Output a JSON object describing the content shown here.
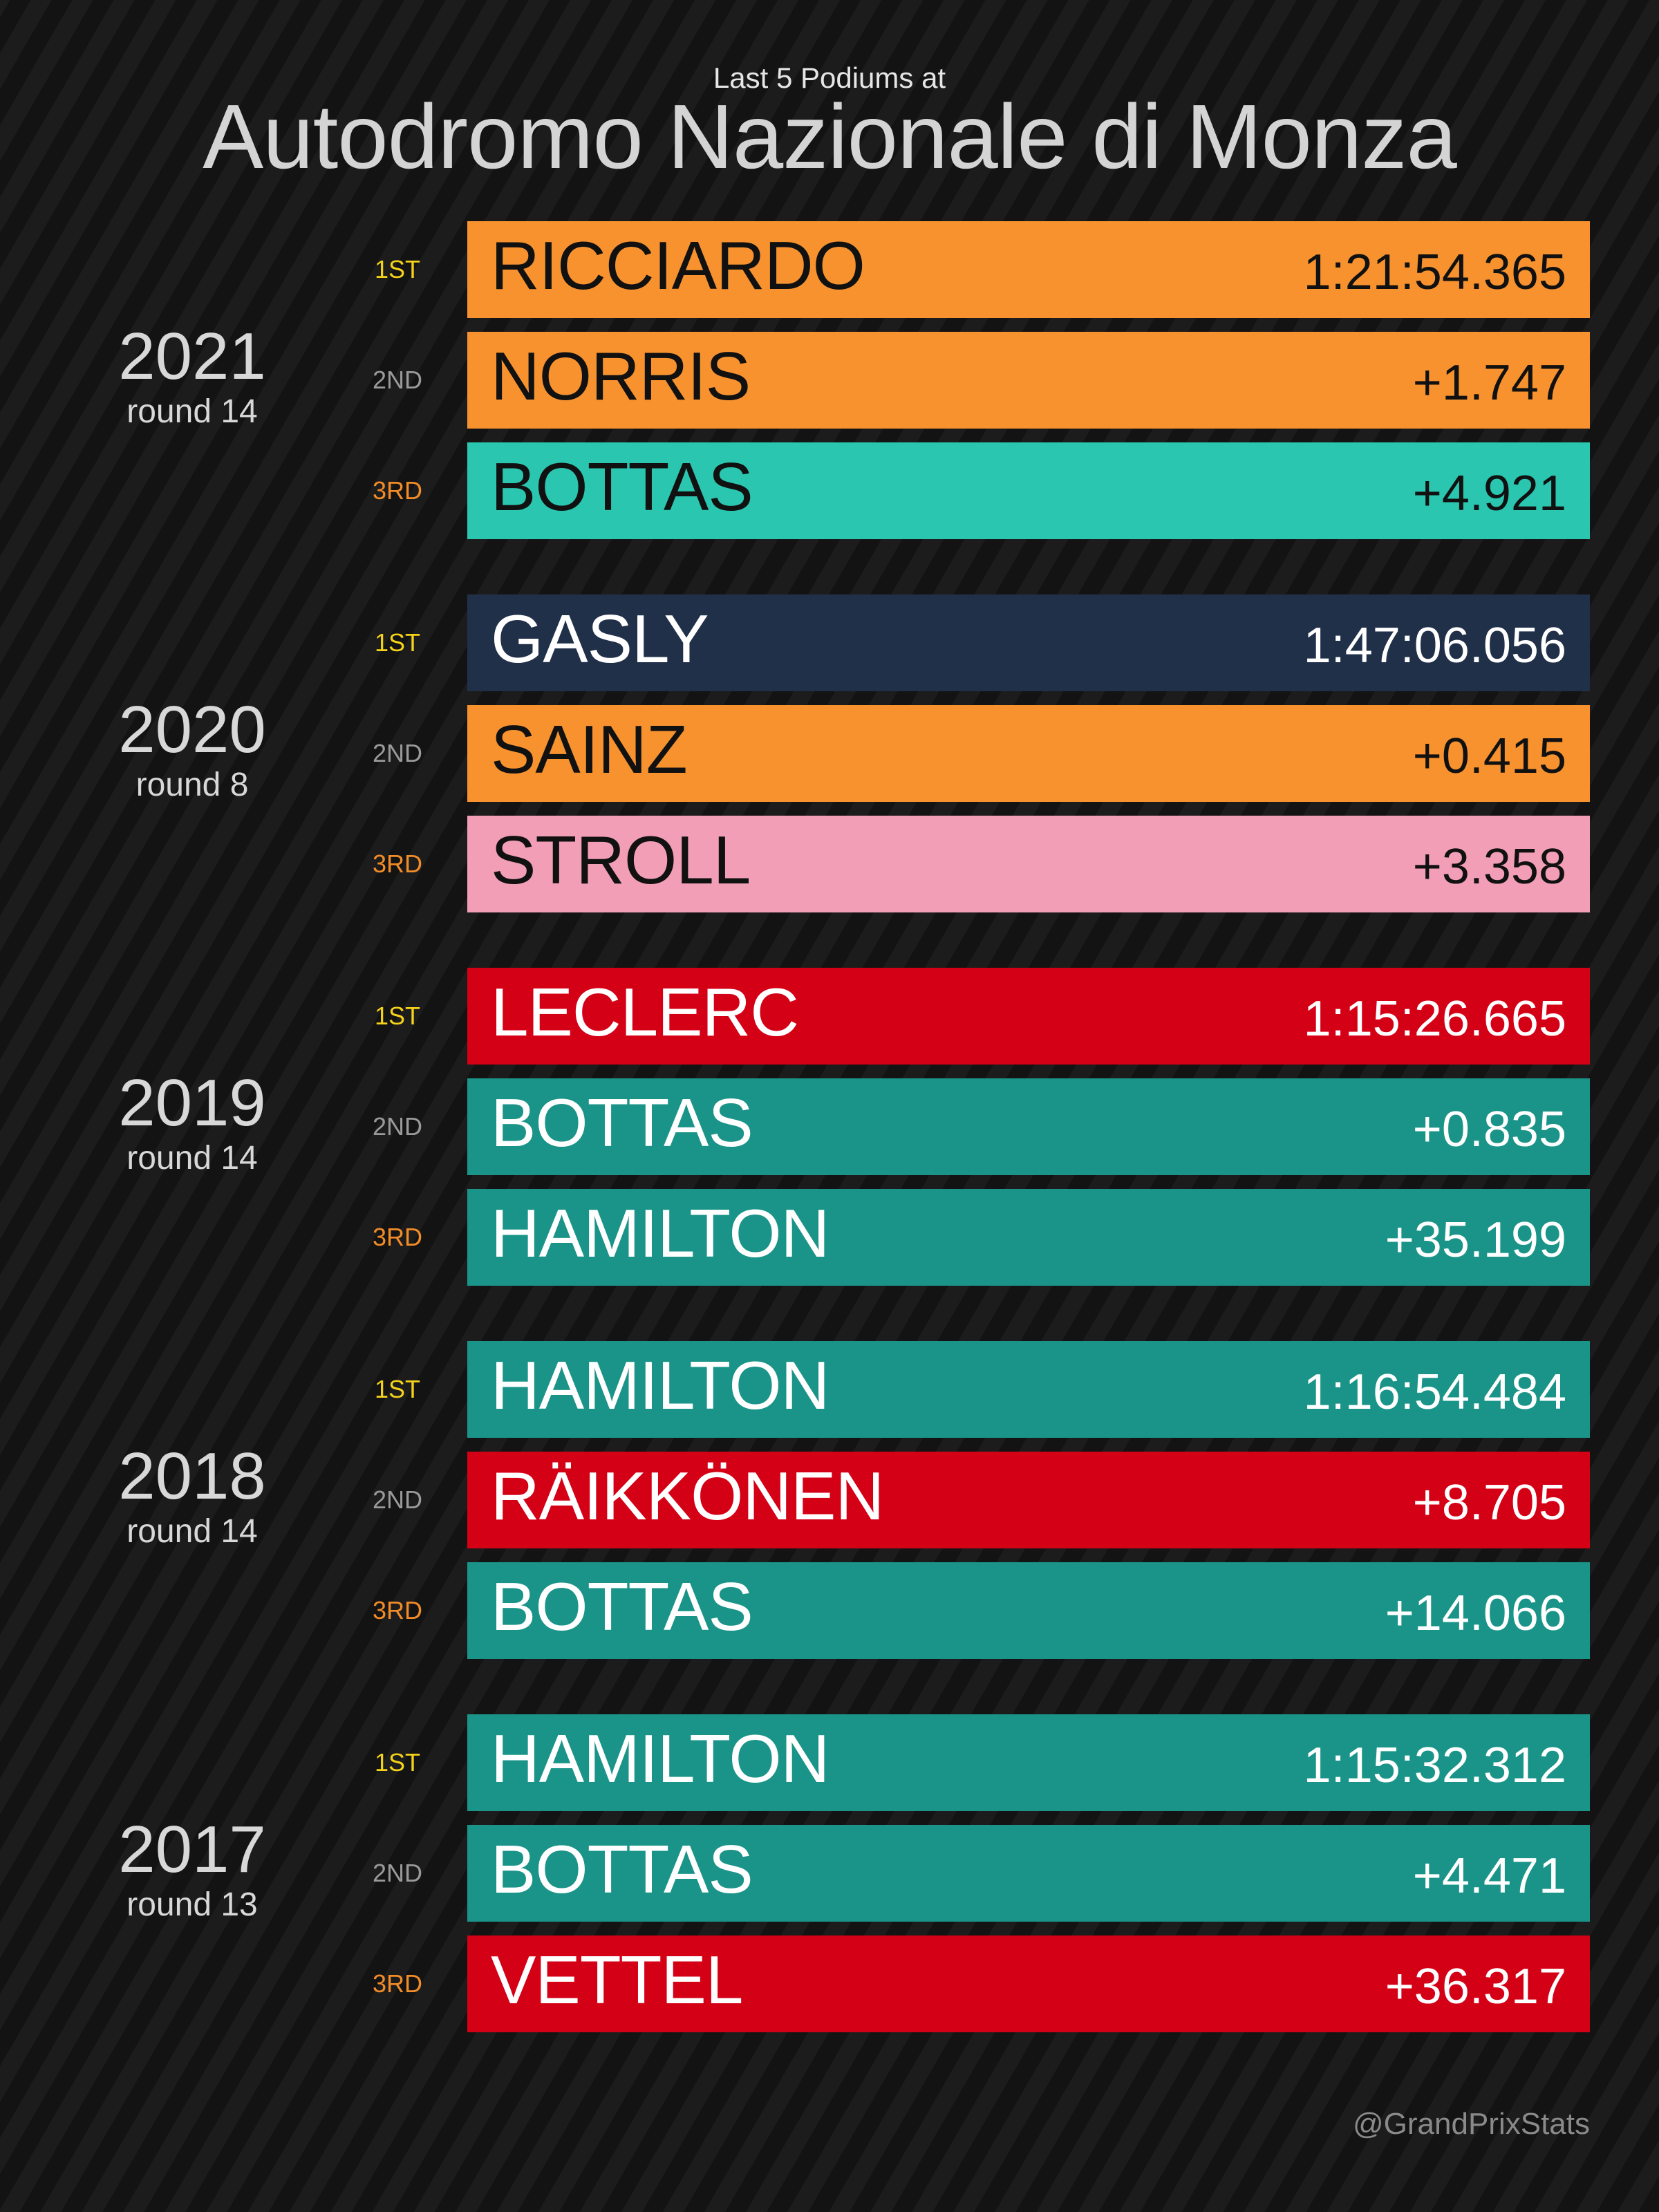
{
  "header": {
    "subtitle": "Last 5 Podiums at",
    "title": "Autodromo Nazionale di Monza"
  },
  "position_labels": {
    "p1": "1ST",
    "p2": "2ND",
    "p3": "3RD"
  },
  "races": [
    {
      "year": "2021",
      "round": "round 14",
      "podium": [
        {
          "driver": "RICCIARDO",
          "time": "1:21:54.365",
          "color": "#f7922f",
          "text_color": "#111111"
        },
        {
          "driver": "NORRIS",
          "time": "+1.747",
          "color": "#f7922f",
          "text_color": "#111111"
        },
        {
          "driver": "BOTTAS",
          "time": "+4.921",
          "color": "#2ac6b0",
          "text_color": "#111111"
        }
      ]
    },
    {
      "year": "2020",
      "round": "round 8",
      "podium": [
        {
          "driver": "GASLY",
          "time": "1:47:06.056",
          "color": "#213049",
          "text_color": "#ffffff"
        },
        {
          "driver": "SAINZ",
          "time": "+0.415",
          "color": "#f7922f",
          "text_color": "#111111"
        },
        {
          "driver": "STROLL",
          "time": "+3.358",
          "color": "#f29eb6",
          "text_color": "#111111"
        }
      ]
    },
    {
      "year": "2019",
      "round": "round 14",
      "podium": [
        {
          "driver": "LECLERC",
          "time": "1:15:26.665",
          "color": "#d40016",
          "text_color": "#ffffff"
        },
        {
          "driver": "BOTTAS",
          "time": "+0.835",
          "color": "#1a9488",
          "text_color": "#ffffff"
        },
        {
          "driver": "HAMILTON",
          "time": "+35.199",
          "color": "#1a9488",
          "text_color": "#ffffff"
        }
      ]
    },
    {
      "year": "2018",
      "round": "round 14",
      "podium": [
        {
          "driver": "HAMILTON",
          "time": "1:16:54.484",
          "color": "#1a9488",
          "text_color": "#ffffff"
        },
        {
          "driver": "RÄIKKÖNEN",
          "time": "+8.705",
          "color": "#d40016",
          "text_color": "#ffffff"
        },
        {
          "driver": "BOTTAS",
          "time": "+14.066",
          "color": "#1a9488",
          "text_color": "#ffffff"
        }
      ]
    },
    {
      "year": "2017",
      "round": "round 13",
      "podium": [
        {
          "driver": "HAMILTON",
          "time": "1:15:32.312",
          "color": "#1a9488",
          "text_color": "#ffffff"
        },
        {
          "driver": "BOTTAS",
          "time": "+4.471",
          "color": "#1a9488",
          "text_color": "#ffffff"
        },
        {
          "driver": "VETTEL",
          "time": "+36.317",
          "color": "#d40016",
          "text_color": "#ffffff"
        }
      ]
    }
  ],
  "footer": {
    "handle": "@GrandPrixStats"
  }
}
